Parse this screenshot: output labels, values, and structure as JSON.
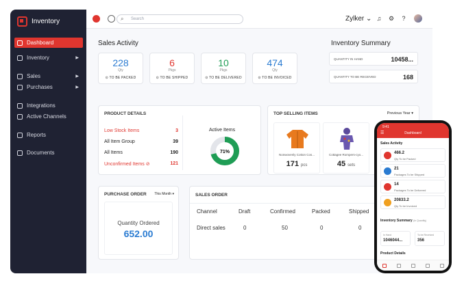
{
  "sidebar": {
    "brand": "Inventory",
    "items": [
      {
        "label": "Dashboard",
        "icon": "dashboard-icon"
      },
      {
        "label": "Inventory",
        "icon": "box-icon"
      },
      {
        "label": "Sales",
        "icon": "cart-icon"
      },
      {
        "label": "Purchases",
        "icon": "bag-icon"
      },
      {
        "label": "Integrations",
        "icon": "plug-icon"
      },
      {
        "label": "Active Channels",
        "icon": "channels-icon"
      },
      {
        "label": "Reports",
        "icon": "chart-icon"
      },
      {
        "label": "Documents",
        "icon": "folder-icon"
      }
    ]
  },
  "topbar": {
    "search_placeholder": "Search",
    "org": "Zylker"
  },
  "sales_activity": {
    "title": "Sales Activity",
    "cards": [
      {
        "value": "228",
        "unit": "Qty",
        "label": "TO BE PACKED",
        "color": "#2a7bd1"
      },
      {
        "value": "6",
        "unit": "Pkgs",
        "label": "TO BE SHIPPED",
        "color": "#e0362f"
      },
      {
        "value": "10",
        "unit": "Pkgs",
        "label": "TO BE DELIVERED",
        "color": "#1f9d55"
      },
      {
        "value": "474",
        "unit": "Qty",
        "label": "TO BE INVOICED",
        "color": "#2a7bd1"
      }
    ]
  },
  "inventory_summary": {
    "title": "Inventory Summary",
    "rows": [
      {
        "label": "QUANTITY IN HAND",
        "value": "10458..."
      },
      {
        "label": "QUANTITY TO BE RECEIVED",
        "value": "168"
      }
    ]
  },
  "product_details": {
    "title": "PRODUCT DETAILS",
    "rows": [
      {
        "label": "Low Stock Items",
        "value": "3",
        "red": true
      },
      {
        "label": "All Item Group",
        "value": "39",
        "red": false
      },
      {
        "label": "All Items",
        "value": "190",
        "red": false
      },
      {
        "label": "Unconfirmed Items",
        "value": "121",
        "red": true
      }
    ],
    "active_title": "Active Items",
    "active_pct": "71%",
    "active_fraction": 0.71
  },
  "top_selling": {
    "title": "TOP SELLING ITEMS",
    "period": "Previous Year",
    "items": [
      {
        "name": "Nonwovenly Cotton Cos...",
        "qty": "171",
        "unit": "pcs"
      },
      {
        "name": "Cottagee Rompers-cyo...",
        "qty": "45",
        "unit": "sets"
      }
    ]
  },
  "purchase_order": {
    "title": "PURCHASE ORDER",
    "period": "This Month",
    "label": "Quantity Ordered",
    "value": "652.00"
  },
  "sales_order": {
    "title": "SALES ORDER",
    "columns": [
      "Channel",
      "Draft",
      "Confirmed",
      "Packed",
      "Shipped"
    ],
    "rows": [
      [
        "Direct sales",
        "0",
        "50",
        "0",
        "0"
      ]
    ]
  },
  "phone": {
    "time": "9:41",
    "title": "Dashboard",
    "sales_title": "Sales Activity",
    "items": [
      {
        "value": "466.2",
        "label": "Qty To be Packed",
        "color": "#e0362f"
      },
      {
        "value": "21",
        "label": "Packages To be Shipped",
        "color": "#2a7bd1"
      },
      {
        "value": "14",
        "label": "Packages To be Delivered",
        "color": "#e0362f"
      },
      {
        "value": "20833.2",
        "label": "Qty To be Invoiced",
        "color": "#f0a020"
      }
    ],
    "inv_title": "Inventory Summary",
    "inv_hint": "(In Quantity)",
    "inv_boxes": [
      {
        "label": "In Hand",
        "value": "1046044..."
      },
      {
        "label": "To be Received",
        "value": "356"
      }
    ],
    "product_title": "Product Details"
  }
}
